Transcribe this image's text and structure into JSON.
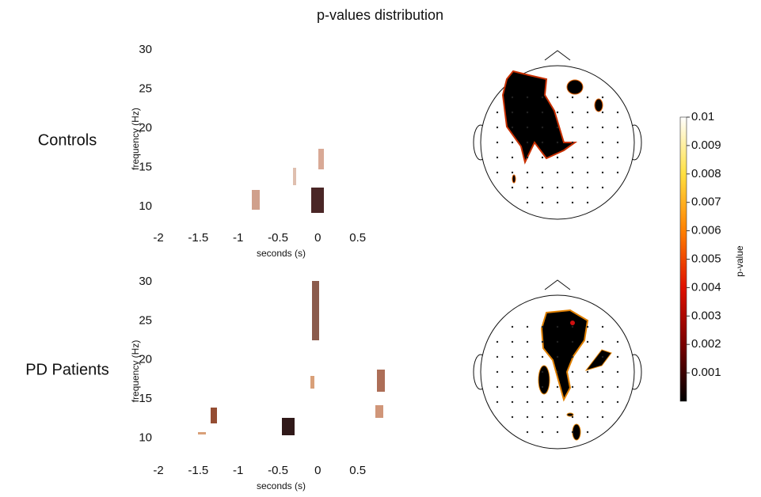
{
  "title": "p-values distribution",
  "chart_data": [
    {
      "type": "heatmap",
      "row_label": "Controls",
      "xlabel": "seconds (s)",
      "ylabel": "frequency (Hz)",
      "xlim": [
        -2,
        0.95
      ],
      "ylim": [
        7.3,
        30
      ],
      "xticks": [
        -2,
        -1.5,
        -1,
        -0.5,
        0,
        0.5
      ],
      "yticks": [
        10,
        15,
        20,
        25,
        30
      ]
    },
    {
      "type": "heatmap",
      "row_label": "PD Patients",
      "xlabel": "seconds (s)",
      "ylabel": "frequency (Hz)",
      "xlim": [
        -2,
        0.95
      ],
      "ylim": [
        7.1,
        30
      ],
      "xticks": [
        -2,
        -1.5,
        -1,
        -0.5,
        0,
        0.5
      ],
      "yticks": [
        10,
        15,
        20,
        25,
        30
      ]
    }
  ],
  "colorbar": {
    "label": "p-value",
    "lim": [
      0,
      0.01
    ],
    "ticks": [
      0.001,
      0.002,
      0.003,
      0.004,
      0.005,
      0.006,
      0.007,
      0.008,
      0.009,
      0.01
    ],
    "colors": [
      "#000000",
      "#7a0000",
      "#e01000",
      "#ff8000",
      "#ffe040",
      "#ffffff"
    ]
  }
}
